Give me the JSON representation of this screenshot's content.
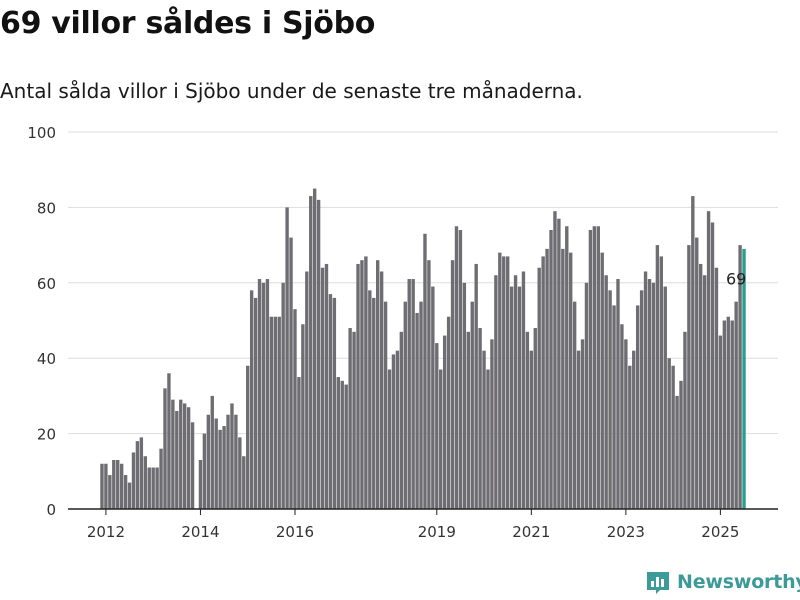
{
  "title": "69 villor såldes i Sjöbo",
  "subtitle": "Antal sålda villor i Sjöbo under de senaste tre månaderna.",
  "brand": {
    "name": "Newsworthy",
    "color": "#3c9a98",
    "icon": "newsworthy-logo-icon"
  },
  "colors": {
    "bar": "#6e6d72",
    "highlight": "#2a9d8f",
    "grid": "#dddddd",
    "axis": "#222222"
  },
  "chart_data": {
    "type": "bar",
    "xlabel": "",
    "ylabel": "",
    "ylim": [
      0,
      100
    ],
    "yticks": [
      0,
      20,
      40,
      60,
      80,
      100
    ],
    "xtick_labels": [
      "2012",
      "2014",
      "2016",
      "2019",
      "2021",
      "2023",
      "2025"
    ],
    "xtick_label_index": [
      1,
      25,
      49,
      85,
      109,
      133,
      157
    ],
    "grid": true,
    "annotation": {
      "text": "69",
      "bar_index": 161
    },
    "series": [
      {
        "values": [
          12,
          12,
          9,
          13,
          13,
          12,
          9,
          7,
          15,
          18,
          19,
          14,
          11,
          11,
          11,
          16,
          32,
          36,
          29,
          26,
          29,
          28,
          27,
          23,
          0,
          13,
          20,
          25,
          30,
          24,
          21,
          22,
          25,
          28,
          25,
          19,
          14,
          38,
          58,
          56,
          61,
          60,
          61,
          51,
          51,
          51,
          60,
          80,
          72,
          53,
          35,
          49,
          63,
          83,
          85,
          82,
          64,
          65,
          57,
          56,
          35,
          34,
          33,
          48,
          47,
          65,
          66,
          67,
          58,
          56,
          66,
          63,
          55,
          37,
          41,
          42,
          47,
          55,
          61,
          61,
          52,
          55,
          73,
          66,
          59,
          44,
          37,
          46,
          51,
          66,
          75,
          74,
          60,
          47,
          55,
          65,
          48,
          42,
          37,
          45,
          62,
          68,
          67,
          67,
          59,
          62,
          59,
          63,
          47,
          42,
          48,
          64,
          67,
          69,
          74,
          79,
          77,
          69,
          75,
          68,
          55,
          42,
          45,
          60,
          74,
          75,
          75,
          68,
          62,
          58,
          54,
          61,
          49,
          45,
          38,
          42,
          54,
          58,
          63,
          61,
          60,
          70,
          67,
          59,
          40,
          38,
          30,
          34,
          47,
          70,
          83,
          72,
          65,
          62,
          79,
          76,
          64,
          46,
          50,
          51,
          50,
          55,
          70,
          69
        ]
      }
    ]
  }
}
